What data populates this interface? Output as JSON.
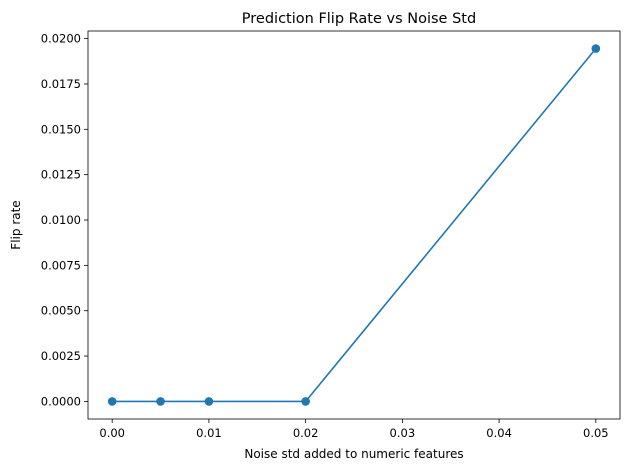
{
  "chart_data": {
    "type": "line",
    "title": "Prediction Flip Rate vs Noise Std",
    "xlabel": "Noise std added to numeric features",
    "ylabel": "Flip rate",
    "x": [
      0.0,
      0.005,
      0.01,
      0.02,
      0.05
    ],
    "series": [
      {
        "values": [
          0.0,
          0.0,
          0.0,
          0.0,
          0.01945
        ],
        "color": "#1f77b4",
        "marker": "circle"
      }
    ],
    "xlim": [
      -0.0025,
      0.0525
    ],
    "ylim": [
      -0.00097,
      0.02042
    ],
    "xticks": [
      0.0,
      0.01,
      0.02,
      0.03,
      0.04,
      0.05
    ],
    "xtick_labels": [
      "0.00",
      "0.01",
      "0.02",
      "0.03",
      "0.04",
      "0.05"
    ],
    "yticks": [
      0.0,
      0.0025,
      0.005,
      0.0075,
      0.01,
      0.0125,
      0.015,
      0.0175,
      0.02
    ],
    "ytick_labels": [
      "0.0000",
      "0.0025",
      "0.0050",
      "0.0075",
      "0.0100",
      "0.0125",
      "0.0150",
      "0.0175",
      "0.0200"
    ],
    "grid": false,
    "legend": "none"
  }
}
